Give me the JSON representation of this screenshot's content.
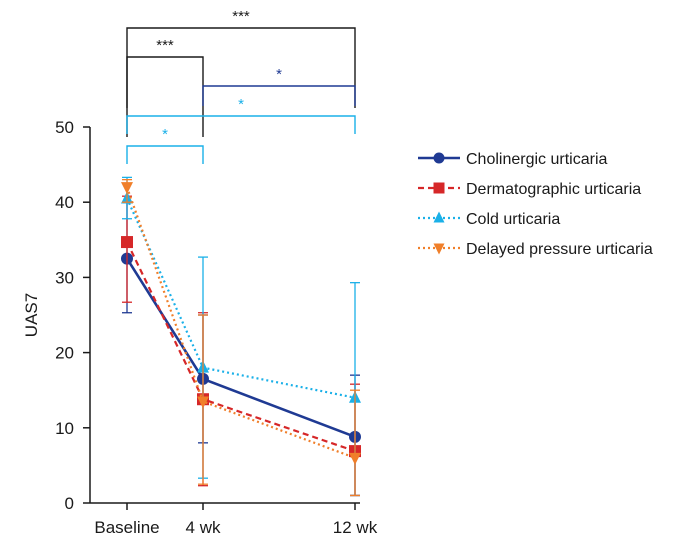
{
  "chart_data": {
    "type": "line",
    "title": "",
    "xlabel": "",
    "ylabel": "UAS7",
    "ylim": [
      0,
      50
    ],
    "yticks": [
      0,
      10,
      20,
      30,
      40,
      50
    ],
    "categories": [
      "Baseline",
      "4 wk",
      "12 wk"
    ],
    "x": [
      0,
      4,
      12
    ],
    "legend_position": "right",
    "series": [
      {
        "name": "Cholinergic urticaria",
        "color": "#1f3a93",
        "marker": "circle",
        "dash": "solid",
        "values": [
          32.5,
          16.5,
          8.8
        ],
        "err_low": [
          25.3,
          8.0,
          1.0
        ],
        "err_high": [
          40.0,
          25.0,
          17.0
        ]
      },
      {
        "name": "Dermatographic urticaria",
        "color": "#d62728",
        "marker": "square",
        "dash": "dashed",
        "values": [
          34.7,
          13.8,
          6.9
        ],
        "err_low": [
          26.7,
          2.3,
          1.0
        ],
        "err_high": [
          40.8,
          25.3,
          15.8
        ]
      },
      {
        "name": "Cold urticaria",
        "color": "#1ab0e8",
        "marker": "triangle-up",
        "dash": "dotted",
        "values": [
          40.5,
          18.0,
          14.0
        ],
        "err_low": [
          37.8,
          3.3,
          1.0
        ],
        "err_high": [
          43.3,
          32.7,
          29.3
        ]
      },
      {
        "name": "Delayed pressure urticaria",
        "color": "#f07f2a",
        "marker": "triangle-down",
        "dash": "dotted",
        "values": [
          42.0,
          13.5,
          6.0
        ],
        "err_low": [
          40.0,
          2.5,
          1.0
        ],
        "err_high": [
          43.0,
          25.0,
          15.0
        ]
      }
    ],
    "significance": [
      {
        "from": 0,
        "to": 2,
        "label": "***",
        "color": "#1a1a1a"
      },
      {
        "from": 0,
        "to": 1,
        "label": "***",
        "color": "#1a1a1a"
      },
      {
        "from": 1,
        "to": 2,
        "label": "*",
        "color": "#1f3a93"
      },
      {
        "from": 0,
        "to": 2,
        "label": "*",
        "color": "#1ab0e8"
      },
      {
        "from": 0,
        "to": 1,
        "label": "*",
        "color": "#1ab0e8"
      }
    ]
  }
}
